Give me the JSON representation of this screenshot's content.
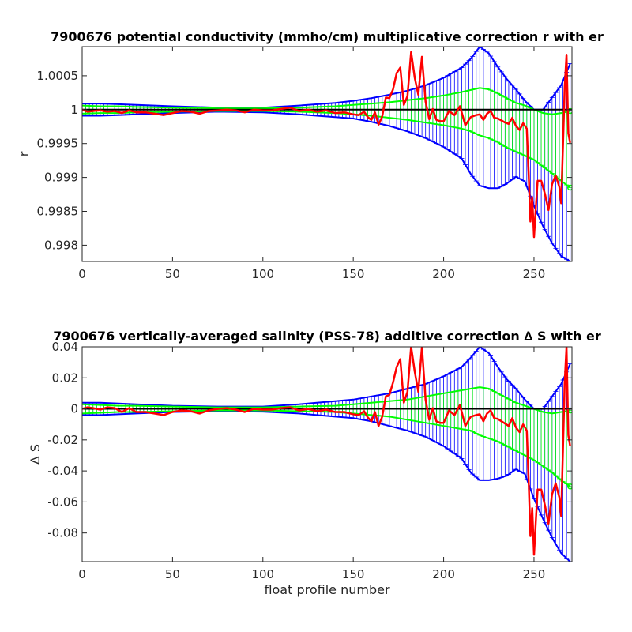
{
  "colors": {
    "err_outer": "#0000ff",
    "err_inner": "#00ff00",
    "correction": "#ff0000",
    "reference": "#000000",
    "axes": "#262626"
  },
  "chart_data": [
    {
      "type": "line",
      "title": "7900676 potential conductivity (mmho/cm) multiplicative correction r with er",
      "xlabel": "",
      "ylabel": "r",
      "xlim": [
        0,
        271
      ],
      "ylim": [
        0.99776,
        1.00093
      ],
      "reference_line": 1,
      "x_ticks": [
        0,
        50,
        100,
        150,
        200,
        250
      ],
      "x_tick_labels": [
        "0",
        "50",
        "100",
        "150",
        "200",
        "250"
      ],
      "y_ticks": [
        0.998,
        0.9985,
        0.999,
        0.9995,
        1,
        1.0005
      ],
      "y_tick_labels": [
        "0.998",
        "0.9985",
        "0.999",
        "0.9995",
        "1",
        "1.0005"
      ],
      "series": [
        {
          "role": "outer_error_band",
          "x": [
            0,
            10,
            20,
            30,
            50,
            75,
            100,
            120,
            140,
            150,
            160,
            170,
            180,
            190,
            200,
            210,
            215,
            220,
            225,
            230,
            235,
            240,
            245,
            250,
            255,
            260,
            265,
            270
          ],
          "upper": [
            1.00009,
            1.00009,
            1.00008,
            1.00007,
            1.00005,
            1.00003,
            1.00003,
            1.00006,
            1.0001,
            1.00013,
            1.00017,
            1.00022,
            1.00028,
            1.00036,
            1.00047,
            1.00062,
            1.00075,
            1.00093,
            1.00083,
            1.00063,
            1.00045,
            1.0003,
            1.00013,
            1.0,
            1.0,
            1.00018,
            1.00036,
            1.00068
          ],
          "lower": [
            0.99991,
            0.99991,
            0.99992,
            0.99993,
            0.99995,
            0.99997,
            0.99996,
            0.99993,
            0.99989,
            0.99987,
            0.99982,
            0.99976,
            0.99968,
            0.99958,
            0.99945,
            0.99928,
            0.99905,
            0.99888,
            0.99884,
            0.99884,
            0.99891,
            0.99901,
            0.99894,
            0.99858,
            0.99828,
            0.99803,
            0.99784,
            0.99776
          ]
        },
        {
          "role": "inner_error_band",
          "x": [
            0,
            10,
            20,
            30,
            50,
            75,
            100,
            120,
            140,
            150,
            160,
            170,
            180,
            190,
            200,
            210,
            215,
            220,
            225,
            230,
            235,
            240,
            245,
            250,
            255,
            260,
            265,
            270
          ],
          "upper": [
            1.00006,
            1.00005,
            1.00005,
            1.00004,
            1.00003,
            1.00002,
            1.00002,
            1.00003,
            1.00005,
            1.00007,
            1.00009,
            1.00011,
            1.00014,
            1.00017,
            1.00021,
            1.00026,
            1.00029,
            1.00032,
            1.0003,
            1.00024,
            1.00017,
            1.0001,
            1.00006,
            1.0,
            0.99995,
            0.99993,
            0.99995,
            0.99998
          ],
          "lower": [
            0.99994,
            0.99995,
            0.99995,
            0.99996,
            0.99997,
            0.99998,
            0.99998,
            0.99997,
            0.99995,
            0.99993,
            0.99991,
            0.99988,
            0.99985,
            0.99981,
            0.99977,
            0.99972,
            0.99968,
            0.99962,
            0.99958,
            0.99952,
            0.99944,
            0.99938,
            0.99932,
            0.99926,
            0.99916,
            0.99906,
            0.99895,
            0.99885
          ]
        },
        {
          "role": "correction",
          "x": [
            0,
            3,
            6,
            10,
            14,
            18,
            22,
            26,
            30,
            35,
            40,
            45,
            50,
            55,
            60,
            65,
            70,
            75,
            80,
            85,
            90,
            95,
            100,
            105,
            110,
            115,
            120,
            125,
            130,
            135,
            140,
            145,
            150,
            153,
            156,
            158,
            160,
            162,
            164,
            166,
            168,
            170,
            172,
            174,
            176,
            178,
            180,
            182,
            184,
            186,
            188,
            190,
            192,
            194,
            196,
            198,
            200,
            203,
            206,
            209,
            212,
            215,
            218,
            220,
            222,
            224,
            226,
            228,
            230,
            232,
            234,
            236,
            238,
            240,
            242,
            244,
            246,
            247,
            248,
            249,
            250,
            251,
            252,
            254,
            256,
            258,
            260,
            262,
            264,
            265,
            266,
            267,
            268,
            269,
            270
          ],
          "values": [
            1.0,
            0.99997,
            0.99998,
            0.99999,
            0.99997,
            0.99998,
            0.99995,
            0.99999,
            0.99996,
            0.99996,
            0.99994,
            0.99992,
            0.99995,
            0.99998,
            0.99997,
            0.99994,
            0.99998,
            0.99999,
            1.0,
            0.99999,
            0.99996,
            1.0,
            0.99999,
            0.99999,
            1.00001,
            1.00003,
            0.99998,
            1.0,
            0.99997,
            0.99999,
            0.99995,
            0.99996,
            0.99993,
            0.99992,
            0.99997,
            0.99989,
            0.99985,
            0.99996,
            0.99978,
            0.9999,
            1.00018,
            1.00017,
            1.0003,
            1.00054,
            1.00062,
            1.00007,
            1.0002,
            1.00085,
            1.00047,
            1.00022,
            1.00078,
            1.00012,
            0.99986,
            1.00001,
            0.99985,
            0.99983,
            0.99983,
            0.99998,
            0.99992,
            1.00005,
            0.99977,
            0.99989,
            0.99992,
            0.99993,
            0.99985,
            0.99994,
            0.99998,
            0.99988,
            0.99987,
            0.99984,
            0.99981,
            0.99979,
            0.99988,
            0.99976,
            0.9997,
            0.9998,
            0.99972,
            0.99908,
            0.99835,
            0.99871,
            0.99812,
            0.99854,
            0.99895,
            0.99895,
            0.99876,
            0.99852,
            0.9989,
            0.99903,
            0.99886,
            0.99862,
            0.99947,
            1.00033,
            1.00081,
            0.99965,
            0.99951
          ]
        },
        {
          "role": "reference",
          "y": 1
        }
      ]
    },
    {
      "type": "line",
      "title": "7900676 vertically-averaged salinity (PSS-78) additive correction ∆ S with er",
      "xlabel": "float profile number",
      "ylabel": "∆ S",
      "xlim": [
        0,
        271
      ],
      "ylim": [
        -0.0985,
        0.04
      ],
      "reference_line": 0,
      "x_ticks": [
        0,
        50,
        100,
        150,
        200,
        250
      ],
      "x_tick_labels": [
        "0",
        "50",
        "100",
        "150",
        "200",
        "250"
      ],
      "y_ticks": [
        -0.08,
        -0.06,
        -0.04,
        -0.02,
        0,
        0.02,
        0.04
      ],
      "y_tick_labels": [
        "-0.08",
        "-0.06",
        "-0.04",
        "-0.02",
        "0",
        "0.02",
        "0.04"
      ],
      "series": [
        {
          "role": "outer_error_band",
          "x": [
            0,
            10,
            20,
            30,
            50,
            75,
            100,
            120,
            140,
            150,
            160,
            170,
            180,
            190,
            200,
            210,
            215,
            220,
            225,
            230,
            235,
            240,
            245,
            250,
            255,
            260,
            265,
            270
          ],
          "upper": [
            0.004,
            0.004,
            0.0035,
            0.003,
            0.002,
            0.0015,
            0.0015,
            0.003,
            0.005,
            0.006,
            0.008,
            0.01,
            0.013,
            0.016,
            0.021,
            0.027,
            0.033,
            0.04,
            0.036,
            0.027,
            0.019,
            0.013,
            0.006,
            0.0,
            0.0,
            0.008,
            0.016,
            0.029
          ],
          "lower": [
            -0.004,
            -0.004,
            -0.0035,
            -0.003,
            -0.002,
            -0.0015,
            -0.0018,
            -0.003,
            -0.005,
            -0.006,
            -0.008,
            -0.011,
            -0.014,
            -0.018,
            -0.024,
            -0.032,
            -0.041,
            -0.046,
            -0.046,
            -0.045,
            -0.043,
            -0.039,
            -0.042,
            -0.058,
            -0.071,
            -0.083,
            -0.093,
            -0.0985
          ]
        },
        {
          "role": "inner_error_band",
          "x": [
            0,
            10,
            20,
            30,
            50,
            75,
            100,
            120,
            140,
            150,
            160,
            170,
            180,
            190,
            200,
            210,
            215,
            220,
            225,
            230,
            235,
            240,
            245,
            250,
            255,
            260,
            265,
            270
          ],
          "upper": [
            0.003,
            0.0025,
            0.002,
            0.002,
            0.0015,
            0.001,
            0.001,
            0.0015,
            0.002,
            0.003,
            0.004,
            0.005,
            0.006,
            0.008,
            0.01,
            0.012,
            0.013,
            0.014,
            0.013,
            0.01,
            0.007,
            0.004,
            0.002,
            0.0,
            -0.002,
            -0.003,
            -0.002,
            -0.001
          ],
          "lower": [
            -0.003,
            -0.0025,
            -0.002,
            -0.002,
            -0.0015,
            -0.001,
            -0.001,
            -0.0015,
            -0.002,
            -0.003,
            -0.004,
            -0.005,
            -0.007,
            -0.009,
            -0.011,
            -0.013,
            -0.014,
            -0.017,
            -0.019,
            -0.021,
            -0.024,
            -0.027,
            -0.03,
            -0.033,
            -0.037,
            -0.041,
            -0.046,
            -0.05
          ]
        },
        {
          "role": "correction",
          "x": [
            0,
            3,
            6,
            10,
            14,
            18,
            22,
            26,
            30,
            35,
            40,
            45,
            50,
            55,
            60,
            65,
            70,
            75,
            80,
            85,
            90,
            95,
            100,
            105,
            110,
            115,
            120,
            125,
            130,
            135,
            140,
            145,
            150,
            153,
            156,
            158,
            160,
            162,
            164,
            166,
            168,
            170,
            172,
            174,
            176,
            178,
            180,
            182,
            184,
            186,
            188,
            190,
            192,
            194,
            196,
            198,
            200,
            203,
            206,
            209,
            212,
            215,
            218,
            220,
            222,
            224,
            226,
            228,
            230,
            232,
            234,
            236,
            238,
            240,
            242,
            244,
            246,
            247,
            248,
            249,
            250,
            251,
            252,
            254,
            256,
            258,
            260,
            262,
            264,
            265,
            266,
            267,
            268,
            269,
            270
          ],
          "values": [
            0.0,
            0.001,
            0.0005,
            -0.0005,
            0.001,
            0.0005,
            -0.002,
            0.0005,
            -0.002,
            -0.002,
            -0.003,
            -0.004,
            -0.002,
            -0.001,
            -0.0015,
            -0.003,
            -0.001,
            0.0,
            0.0005,
            -0.0005,
            -0.002,
            0.0,
            -0.0005,
            -0.0005,
            0.0005,
            0.001,
            -0.001,
            0.0,
            -0.0015,
            -0.0005,
            -0.002,
            -0.002,
            -0.0035,
            -0.004,
            -0.0015,
            -0.0055,
            -0.008,
            -0.002,
            -0.011,
            -0.005,
            0.008,
            0.009,
            0.017,
            0.027,
            0.032,
            0.004,
            0.011,
            0.04,
            0.024,
            0.011,
            0.04,
            0.006,
            -0.007,
            0.0005,
            -0.008,
            -0.009,
            -0.009,
            -0.001,
            -0.004,
            0.0025,
            -0.011,
            -0.005,
            -0.004,
            -0.0035,
            -0.008,
            -0.003,
            -0.001,
            -0.006,
            -0.0065,
            -0.008,
            -0.0095,
            -0.011,
            -0.006,
            -0.012,
            -0.015,
            -0.01,
            -0.014,
            -0.045,
            -0.082,
            -0.064,
            -0.094,
            -0.073,
            -0.052,
            -0.052,
            -0.062,
            -0.074,
            -0.055,
            -0.048,
            -0.057,
            -0.069,
            -0.026,
            0.017,
            0.04,
            -0.017,
            -0.024
          ]
        },
        {
          "role": "reference",
          "y": 0
        }
      ]
    }
  ]
}
